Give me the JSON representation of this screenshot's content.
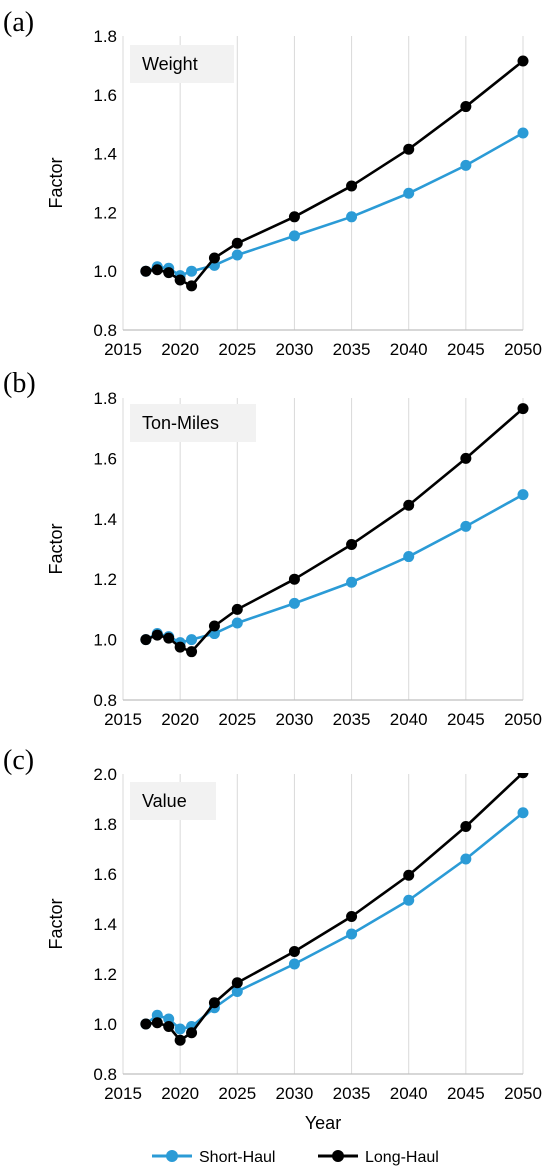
{
  "chart_data": [
    {
      "type": "line",
      "panel_letter": "(a)",
      "title": "Weight",
      "ylabel": "Factor",
      "xlabel": "",
      "xlim": [
        2015,
        2050
      ],
      "ylim": [
        0.8,
        1.8
      ],
      "xticks": [
        2015,
        2020,
        2025,
        2030,
        2035,
        2040,
        2045,
        2050
      ],
      "yticks": [
        "0.8",
        "1.0",
        "1.2",
        "1.4",
        "1.6",
        "1.8"
      ],
      "grid": "vertical",
      "x": [
        2017,
        2018,
        2019,
        2020,
        2021,
        2023,
        2025,
        2030,
        2035,
        2040,
        2045,
        2050
      ],
      "series": [
        {
          "name": "Short-Haul",
          "color": "#2b9bd6",
          "values": [
            1.0,
            1.015,
            1.01,
            0.985,
            1.0,
            1.02,
            1.055,
            1.12,
            1.185,
            1.265,
            1.36,
            1.47
          ]
        },
        {
          "name": "Long-Haul",
          "color": "#000000",
          "values": [
            1.0,
            1.005,
            0.995,
            0.97,
            0.95,
            1.045,
            1.095,
            1.185,
            1.29,
            1.415,
            1.56,
            1.715
          ]
        }
      ]
    },
    {
      "type": "line",
      "panel_letter": "(b)",
      "title": "Ton-Miles",
      "ylabel": "Factor",
      "xlabel": "",
      "xlim": [
        2015,
        2050
      ],
      "ylim": [
        0.8,
        1.8
      ],
      "xticks": [
        2015,
        2020,
        2025,
        2030,
        2035,
        2040,
        2045,
        2050
      ],
      "yticks": [
        "0.8",
        "1.0",
        "1.2",
        "1.4",
        "1.6",
        "1.8"
      ],
      "grid": "vertical",
      "x": [
        2017,
        2018,
        2019,
        2020,
        2021,
        2023,
        2025,
        2030,
        2035,
        2040,
        2045,
        2050
      ],
      "series": [
        {
          "name": "Short-Haul",
          "color": "#2b9bd6",
          "values": [
            1.0,
            1.02,
            1.01,
            0.99,
            1.0,
            1.02,
            1.055,
            1.12,
            1.19,
            1.275,
            1.375,
            1.48
          ]
        },
        {
          "name": "Long-Haul",
          "color": "#000000",
          "values": [
            1.0,
            1.015,
            1.005,
            0.975,
            0.96,
            1.045,
            1.1,
            1.2,
            1.315,
            1.445,
            1.6,
            1.765
          ]
        }
      ]
    },
    {
      "type": "line",
      "panel_letter": "(c)",
      "title": "Value",
      "ylabel": "Factor",
      "xlabel": "Year",
      "xlim": [
        2015,
        2050
      ],
      "ylim": [
        0.8,
        2.0
      ],
      "xticks": [
        2015,
        2020,
        2025,
        2030,
        2035,
        2040,
        2045,
        2050
      ],
      "yticks": [
        "0.8",
        "1.0",
        "1.2",
        "1.4",
        "1.6",
        "1.8",
        "2.0"
      ],
      "grid": "vertical",
      "x": [
        2017,
        2018,
        2019,
        2020,
        2021,
        2023,
        2025,
        2030,
        2035,
        2040,
        2045,
        2050
      ],
      "series": [
        {
          "name": "Short-Haul",
          "color": "#2b9bd6",
          "values": [
            1.0,
            1.035,
            1.02,
            0.98,
            0.99,
            1.065,
            1.13,
            1.24,
            1.36,
            1.495,
            1.66,
            1.845
          ]
        },
        {
          "name": "Long-Haul",
          "color": "#000000",
          "values": [
            1.0,
            1.005,
            0.99,
            0.935,
            0.965,
            1.085,
            1.165,
            1.29,
            1.43,
            1.595,
            1.79,
            2.005
          ]
        }
      ]
    }
  ],
  "legend": {
    "position": "bottom",
    "items": [
      {
        "label": "Short-Haul",
        "color": "#2b9bd6"
      },
      {
        "label": "Long-Haul",
        "color": "#000000"
      }
    ]
  }
}
